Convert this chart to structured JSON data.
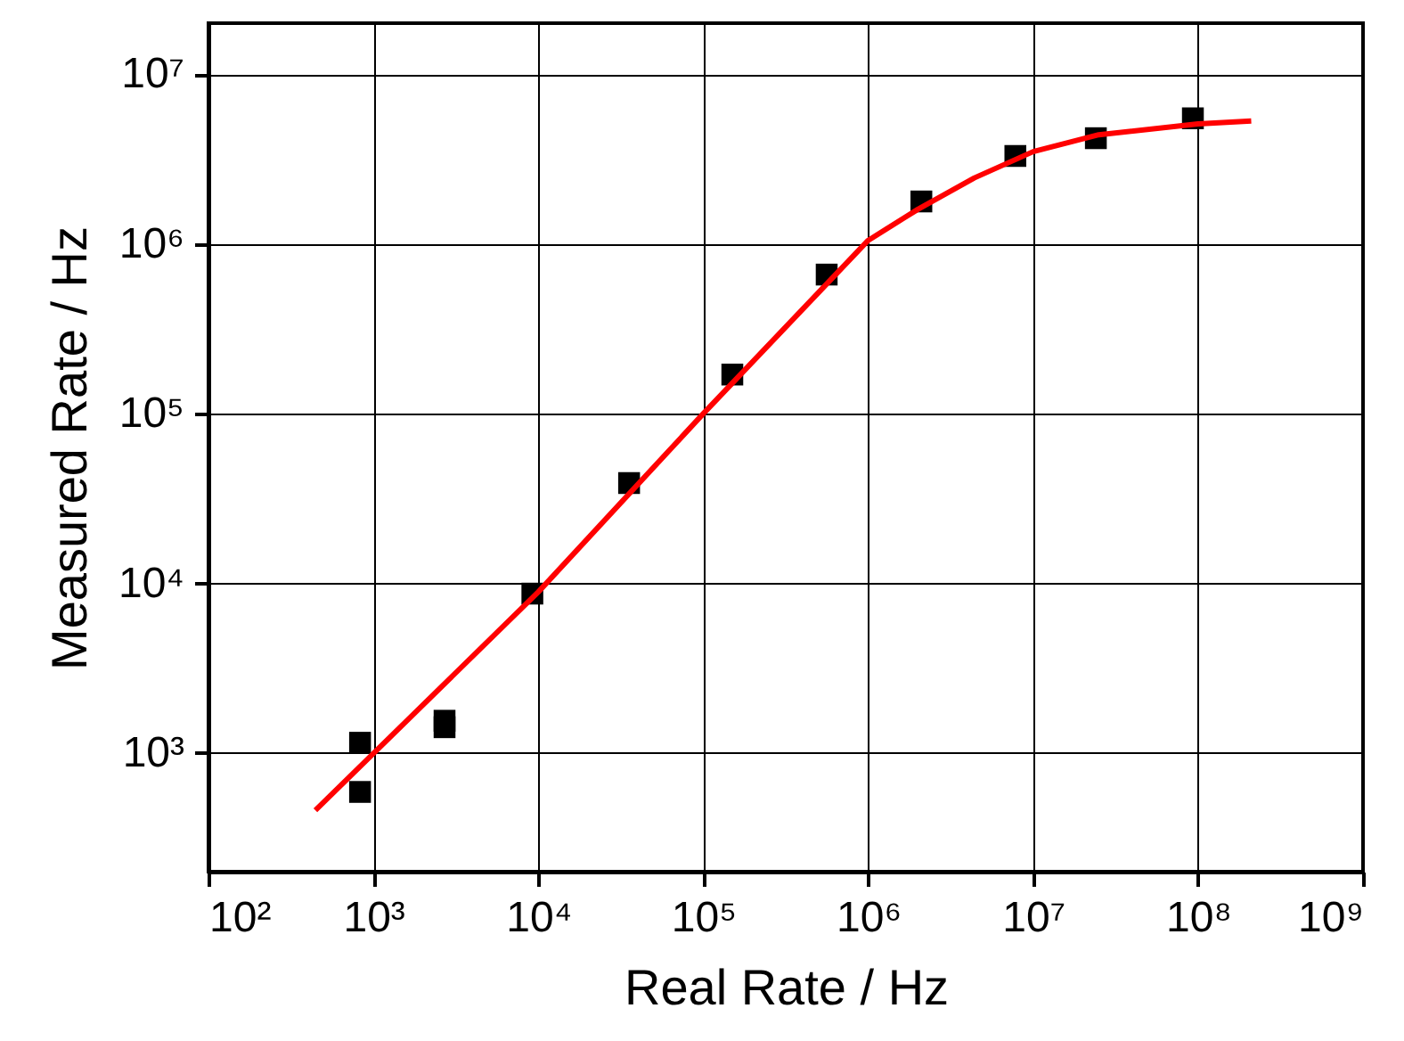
{
  "chart_data": {
    "type": "scatter",
    "xlabel": "Real Rate / Hz",
    "ylabel": "Measured Rate / Hz",
    "log": "xy",
    "grid": true,
    "xlim": [
      100,
      1000000000
    ],
    "ylim": [
      200,
      20000000
    ],
    "xticks": [
      {
        "value": 100,
        "label": "10²"
      },
      {
        "value": 1000,
        "label": "10³"
      },
      {
        "value": 10000,
        "label": "10⁴"
      },
      {
        "value": 100000,
        "label": "10⁵"
      },
      {
        "value": 1000000,
        "label": "10⁶"
      },
      {
        "value": 10000000,
        "label": "10⁷"
      },
      {
        "value": 100000000,
        "label": "10⁸"
      },
      {
        "value": 1000000000,
        "label": "10⁹"
      }
    ],
    "yticks": [
      {
        "value": 1000,
        "label": "10³"
      },
      {
        "value": 10000,
        "label": "10⁴"
      },
      {
        "value": 100000,
        "label": "10⁵"
      },
      {
        "value": 1000000,
        "label": "10⁶"
      },
      {
        "value": 10000000,
        "label": "10⁷"
      }
    ],
    "series": [
      {
        "type": "scatter",
        "marker": "square",
        "color": "#000000",
        "x": [
          830,
          830,
          2700,
          2700,
          9200,
          35500,
          150000,
          560000,
          2100000,
          7800000,
          24000000,
          93000000
        ],
        "values": [
          1150,
          590,
          1550,
          1420,
          8700,
          39000,
          170000,
          660000,
          1780000,
          3300000,
          4200000,
          5500000
        ]
      },
      {
        "type": "line",
        "line_style": "solid",
        "color": "#ff0000",
        "x": [
          445,
          10000,
          100000,
          1000000,
          2000000,
          4400000,
          10000000,
          25000000,
          100000000,
          210000000
        ],
        "values": [
          460,
          8900,
          100000,
          1050000,
          1600000,
          2450000,
          3500000,
          4400000,
          5100000,
          5300000
        ]
      }
    ]
  }
}
